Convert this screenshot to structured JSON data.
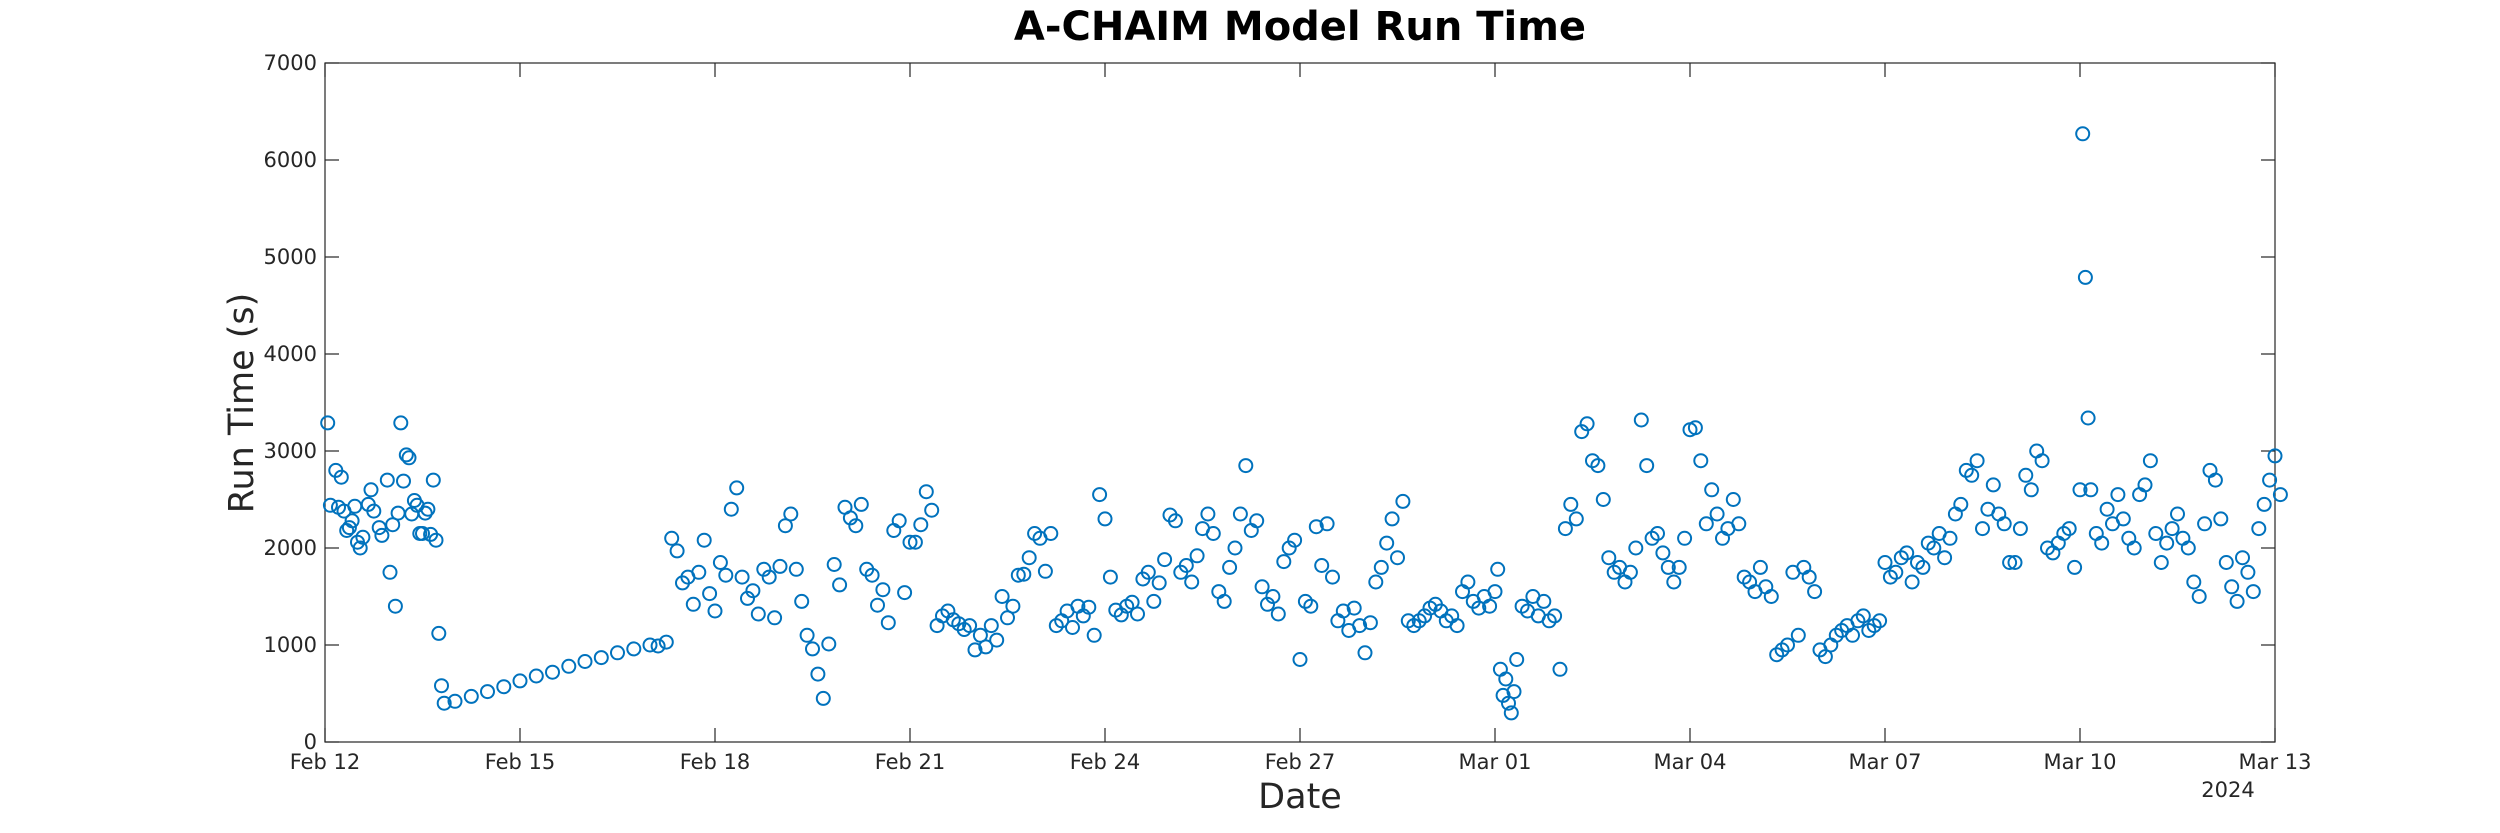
{
  "chart_data": {
    "type": "scatter",
    "title": "A-CHAIM Model Run Time",
    "xlabel": "Date",
    "ylabel": "Run Time (s)",
    "x_tick_labels": [
      "Feb 12",
      "Feb 15",
      "Feb 18",
      "Feb 21",
      "Feb 24",
      "Feb 27",
      "Mar 01",
      "Mar 04",
      "Mar 07",
      "Mar 10",
      "Mar 13"
    ],
    "x_secondary_label": "2024",
    "xlim": [
      "2024-02-12",
      "2024-03-13"
    ],
    "y_ticks": [
      0,
      1000,
      2000,
      3000,
      4000,
      5000,
      6000,
      7000
    ],
    "ylim": [
      0,
      7000
    ],
    "grid": false,
    "marker": "open-circle",
    "marker_color": "#0072BD",
    "series": [
      {
        "x": [
          "2024-02-12T01:00",
          "2024-02-12T02:00",
          "2024-02-12T04:00",
          "2024-02-12T05:00",
          "2024-02-12T06:00",
          "2024-02-12T07:00",
          "2024-02-12T08:00",
          "2024-02-12T09:00",
          "2024-02-12T10:00",
          "2024-02-12T11:00",
          "2024-02-12T12:00",
          "2024-02-12T13:00",
          "2024-02-12T14:00",
          "2024-02-12T16:00",
          "2024-02-12T17:00",
          "2024-02-12T18:00",
          "2024-02-12T20:00",
          "2024-02-12T21:00",
          "2024-02-12T23:00",
          "2024-02-13T00:00",
          "2024-02-13T01:00",
          "2024-02-13T02:00",
          "2024-02-13T03:00",
          "2024-02-13T04:00",
          "2024-02-13T05:00",
          "2024-02-13T06:00",
          "2024-02-13T07:00",
          "2024-02-13T08:00",
          "2024-02-13T09:00",
          "2024-02-13T10:00",
          "2024-02-13T11:00",
          "2024-02-13T12:00",
          "2024-02-13T13:00",
          "2024-02-13T14:00",
          "2024-02-13T15:00",
          "2024-02-13T16:00",
          "2024-02-13T17:00",
          "2024-02-13T18:00",
          "2024-02-13T19:00"
        ],
        "y": [
          3290,
          2440,
          2800,
          2420,
          2730,
          2380,
          2180,
          2210,
          2280,
          2430,
          2060,
          2000,
          2110,
          2450,
          2600,
          2380,
          2210,
          2130,
          2700,
          1750,
          2240,
          1400,
          2360,
          3290,
          2690,
          2960,
          2930,
          2350,
          2490,
          2440,
          2150,
          2150,
          2360,
          2400,
          2140,
          2700,
          2080,
          1120,
          580
        ]
      },
      {
        "x": [
          "2024-02-13T20:00",
          "2024-02-14T00:00",
          "2024-02-14T06:00",
          "2024-02-14T12:00",
          "2024-02-14T18:00",
          "2024-02-15T00:00",
          "2024-02-15T06:00",
          "2024-02-15T12:00",
          "2024-02-15T18:00",
          "2024-02-16T00:00",
          "2024-02-16T06:00",
          "2024-02-16T12:00",
          "2024-02-16T18:00",
          "2024-02-17T00:00",
          "2024-02-17T03:00",
          "2024-02-17T06:00"
        ],
        "y": [
          400,
          420,
          470,
          520,
          570,
          630,
          680,
          720,
          780,
          830,
          870,
          920,
          960,
          1000,
          990,
          1030
        ]
      },
      {
        "x": [
          "2024-02-17T08:00",
          "2024-02-17T10:00",
          "2024-02-17T12:00",
          "2024-02-17T14:00",
          "2024-02-17T16:00",
          "2024-02-17T18:00",
          "2024-02-17T20:00",
          "2024-02-17T22:00",
          "2024-02-18T00:00",
          "2024-02-18T02:00",
          "2024-02-18T04:00",
          "2024-02-18T06:00",
          "2024-02-18T08:00",
          "2024-02-18T10:00",
          "2024-02-18T12:00",
          "2024-02-18T14:00",
          "2024-02-18T16:00",
          "2024-02-18T18:00",
          "2024-02-18T20:00",
          "2024-02-18T22:00",
          "2024-02-19T00:00",
          "2024-02-19T02:00",
          "2024-02-19T04:00",
          "2024-02-19T06:00",
          "2024-02-19T08:00",
          "2024-02-19T10:00",
          "2024-02-19T12:00",
          "2024-02-19T14:00",
          "2024-02-19T16:00",
          "2024-02-19T18:00",
          "2024-02-19T20:00",
          "2024-02-19T22:00",
          "2024-02-20T00:00",
          "2024-02-20T02:00",
          "2024-02-20T04:00",
          "2024-02-20T06:00",
          "2024-02-20T08:00",
          "2024-02-20T10:00",
          "2024-02-20T12:00",
          "2024-02-20T14:00",
          "2024-02-20T16:00",
          "2024-02-20T18:00",
          "2024-02-20T20:00",
          "2024-02-20T22:00",
          "2024-02-21T00:00",
          "2024-02-21T02:00",
          "2024-02-21T04:00",
          "2024-02-21T06:00",
          "2024-02-21T08:00",
          "2024-02-21T10:00",
          "2024-02-21T12:00",
          "2024-02-21T14:00",
          "2024-02-21T16:00",
          "2024-02-21T18:00",
          "2024-02-21T20:00",
          "2024-02-21T22:00"
        ],
        "y": [
          2100,
          1970,
          1640,
          1700,
          1420,
          1750,
          2080,
          1530,
          1350,
          1850,
          1720,
          2400,
          2620,
          1700,
          1480,
          1560,
          1320,
          1780,
          1700,
          1280,
          1810,
          2230,
          2350,
          1780,
          1450,
          1100,
          960,
          700,
          450,
          1010,
          1830,
          1620,
          2420,
          2310,
          2230,
          2450,
          1780,
          1720,
          1410,
          1570,
          1230,
          2180,
          2280,
          1540,
          2060,
          2060,
          2240,
          2580,
          2390,
          1200,
          1300,
          1350,
          1260,
          1220,
          1160,
          1200
        ]
      },
      {
        "x": [
          "2024-02-22T00:00",
          "2024-02-22T02:00",
          "2024-02-22T04:00",
          "2024-02-22T06:00",
          "2024-02-22T08:00",
          "2024-02-22T10:00",
          "2024-02-22T12:00",
          "2024-02-22T14:00",
          "2024-02-22T16:00",
          "2024-02-22T18:00",
          "2024-02-22T20:00",
          "2024-02-22T22:00",
          "2024-02-23T00:00",
          "2024-02-23T02:00",
          "2024-02-23T04:00",
          "2024-02-23T06:00",
          "2024-02-23T08:00",
          "2024-02-23T10:00",
          "2024-02-23T12:00",
          "2024-02-23T14:00",
          "2024-02-23T16:00",
          "2024-02-23T18:00",
          "2024-02-23T20:00",
          "2024-02-23T22:00",
          "2024-02-24T00:00",
          "2024-02-24T02:00",
          "2024-02-24T04:00",
          "2024-02-24T06:00",
          "2024-02-24T08:00",
          "2024-02-24T10:00",
          "2024-02-24T12:00",
          "2024-02-24T14:00",
          "2024-02-24T16:00",
          "2024-02-24T18:00",
          "2024-02-24T20:00",
          "2024-02-24T22:00",
          "2024-02-25T00:00",
          "2024-02-25T02:00",
          "2024-02-25T04:00",
          "2024-02-25T06:00",
          "2024-02-25T08:00",
          "2024-02-25T10:00",
          "2024-02-25T12:00",
          "2024-02-25T14:00",
          "2024-02-25T16:00",
          "2024-02-25T18:00",
          "2024-02-25T20:00",
          "2024-02-25T22:00",
          "2024-02-26T00:00",
          "2024-02-26T02:00",
          "2024-02-26T04:00",
          "2024-02-26T06:00",
          "2024-02-26T08:00",
          "2024-02-26T10:00",
          "2024-02-26T12:00",
          "2024-02-26T14:00",
          "2024-02-26T16:00",
          "2024-02-26T18:00",
          "2024-02-26T20:00",
          "2024-02-26T22:00"
        ],
        "y": [
          950,
          1100,
          980,
          1200,
          1050,
          1500,
          1280,
          1400,
          1720,
          1730,
          1900,
          2150,
          2100,
          1760,
          2150,
          1200,
          1250,
          1350,
          1180,
          1400,
          1300,
          1390,
          1100,
          2550,
          2300,
          1700,
          1360,
          1310,
          1400,
          1440,
          1320,
          1680,
          1750,
          1450,
          1640,
          1880,
          2340,
          2280,
          1750,
          1820,
          1650,
          1920,
          2200,
          2350,
          2150,
          1550,
          1450,
          1800,
          2000,
          2350,
          2850,
          2180,
          2280,
          1600,
          1420,
          1500,
          1320,
          1860,
          2000,
          2080
        ]
      },
      {
        "x": [
          "2024-02-27T00:00",
          "2024-02-27T02:00",
          "2024-02-27T04:00",
          "2024-02-27T06:00",
          "2024-02-27T08:00",
          "2024-02-27T10:00",
          "2024-02-27T12:00",
          "2024-02-27T14:00",
          "2024-02-27T16:00",
          "2024-02-27T18:00",
          "2024-02-27T20:00",
          "2024-02-27T22:00",
          "2024-02-28T00:00",
          "2024-02-28T02:00",
          "2024-02-28T04:00",
          "2024-02-28T06:00",
          "2024-02-28T08:00",
          "2024-02-28T10:00",
          "2024-02-28T12:00",
          "2024-02-28T14:00",
          "2024-02-28T16:00",
          "2024-02-28T18:00",
          "2024-02-28T20:00",
          "2024-02-28T22:00",
          "2024-02-29T00:00",
          "2024-02-29T02:00",
          "2024-02-29T04:00",
          "2024-02-29T06:00",
          "2024-02-29T08:00",
          "2024-02-29T10:00",
          "2024-02-29T12:00",
          "2024-02-29T14:00",
          "2024-02-29T16:00",
          "2024-02-29T18:00",
          "2024-02-29T20:00",
          "2024-02-29T22:00"
        ],
        "y": [
          850,
          1450,
          1400,
          2220,
          1820,
          2250,
          1700,
          1250,
          1350,
          1150,
          1380,
          1200,
          920,
          1230,
          1650,
          1800,
          2050,
          2300,
          1900,
          2480,
          1250,
          1200,
          1250,
          1300,
          1380,
          1420,
          1350,
          1250,
          1300,
          1200,
          1550,
          1650,
          1450,
          1380,
          1500,
          1400
        ]
      },
      {
        "x": [
          "2024-03-01T00:00",
          "2024-03-01T01:00",
          "2024-03-01T02:00",
          "2024-03-01T03:00",
          "2024-03-01T04:00",
          "2024-03-01T05:00",
          "2024-03-01T06:00",
          "2024-03-01T07:00",
          "2024-03-01T08:00",
          "2024-03-01T10:00",
          "2024-03-01T12:00",
          "2024-03-01T14:00",
          "2024-03-01T16:00",
          "2024-03-01T18:00",
          "2024-03-01T20:00",
          "2024-03-01T22:00",
          "2024-03-02T00:00",
          "2024-03-02T02:00",
          "2024-03-02T04:00",
          "2024-03-02T06:00",
          "2024-03-02T08:00",
          "2024-03-02T10:00",
          "2024-03-02T12:00",
          "2024-03-02T14:00",
          "2024-03-02T16:00",
          "2024-03-02T18:00",
          "2024-03-02T20:00",
          "2024-03-02T22:00",
          "2024-03-03T00:00",
          "2024-03-03T02:00",
          "2024-03-03T04:00",
          "2024-03-03T06:00",
          "2024-03-03T08:00",
          "2024-03-03T10:00",
          "2024-03-03T12:00",
          "2024-03-03T14:00",
          "2024-03-03T16:00",
          "2024-03-03T18:00",
          "2024-03-03T20:00",
          "2024-03-03T22:00"
        ],
        "y": [
          1550,
          1780,
          750,
          480,
          650,
          400,
          300,
          520,
          850,
          1400,
          1350,
          1500,
          1300,
          1450,
          1250,
          1300,
          750,
          2200,
          2450,
          2300,
          3200,
          3280,
          2900,
          2850,
          2500,
          1900,
          1750,
          1800,
          1650,
          1750,
          2000,
          3320,
          2850,
          2100,
          2150,
          1950,
          1800,
          1650,
          1800,
          2100
        ]
      },
      {
        "x": [
          "2024-03-04T00:00",
          "2024-03-04T02:00",
          "2024-03-04T04:00",
          "2024-03-04T06:00",
          "2024-03-04T08:00",
          "2024-03-04T10:00",
          "2024-03-04T12:00",
          "2024-03-04T14:00",
          "2024-03-04T16:00",
          "2024-03-04T18:00",
          "2024-03-04T20:00",
          "2024-03-04T22:00",
          "2024-03-05T00:00",
          "2024-03-05T02:00",
          "2024-03-05T04:00",
          "2024-03-05T06:00",
          "2024-03-05T08:00",
          "2024-03-05T10:00",
          "2024-03-05T12:00",
          "2024-03-05T14:00",
          "2024-03-05T16:00",
          "2024-03-05T18:00",
          "2024-03-05T20:00",
          "2024-03-05T22:00",
          "2024-03-06T00:00",
          "2024-03-06T02:00",
          "2024-03-06T04:00",
          "2024-03-06T06:00",
          "2024-03-06T08:00",
          "2024-03-06T10:00",
          "2024-03-06T12:00",
          "2024-03-06T14:00",
          "2024-03-06T16:00",
          "2024-03-06T18:00",
          "2024-03-06T20:00",
          "2024-03-06T22:00"
        ],
        "y": [
          3220,
          3240,
          2900,
          2250,
          2600,
          2350,
          2100,
          2200,
          2500,
          2250,
          1700,
          1650,
          1550,
          1800,
          1600,
          1500,
          900,
          950,
          1000,
          1750,
          1100,
          1800,
          1700,
          1550,
          950,
          880,
          1000,
          1100,
          1150,
          1200,
          1100,
          1250,
          1300,
          1150,
          1200,
          1250
        ]
      },
      {
        "x": [
          "2024-03-07T00:00",
          "2024-03-07T02:00",
          "2024-03-07T04:00",
          "2024-03-07T06:00",
          "2024-03-07T08:00",
          "2024-03-07T10:00",
          "2024-03-07T12:00",
          "2024-03-07T14:00",
          "2024-03-07T16:00",
          "2024-03-07T18:00",
          "2024-03-07T20:00",
          "2024-03-07T22:00",
          "2024-03-08T00:00",
          "2024-03-08T02:00",
          "2024-03-08T04:00",
          "2024-03-08T06:00",
          "2024-03-08T08:00",
          "2024-03-08T10:00",
          "2024-03-08T12:00",
          "2024-03-08T14:00",
          "2024-03-08T16:00",
          "2024-03-08T18:00",
          "2024-03-08T20:00",
          "2024-03-08T22:00",
          "2024-03-09T00:00",
          "2024-03-09T02:00",
          "2024-03-09T04:00",
          "2024-03-09T06:00",
          "2024-03-09T08:00",
          "2024-03-09T10:00",
          "2024-03-09T12:00",
          "2024-03-09T14:00",
          "2024-03-09T16:00",
          "2024-03-09T18:00",
          "2024-03-09T20:00",
          "2024-03-09T22:00"
        ],
        "y": [
          1850,
          1700,
          1750,
          1900,
          1950,
          1650,
          1850,
          1800,
          2050,
          2000,
          2150,
          1900,
          2100,
          2350,
          2450,
          2800,
          2750,
          2900,
          2200,
          2400,
          2650,
          2350,
          2250,
          1850,
          1850,
          2200,
          2750,
          2600,
          3000,
          2900,
          2000,
          1950,
          2050,
          2150,
          2200,
          1800
        ]
      },
      {
        "x": [
          "2024-03-10T00:00",
          "2024-03-10T01:00",
          "2024-03-10T02:00",
          "2024-03-10T03:00",
          "2024-03-10T04:00",
          "2024-03-10T06:00",
          "2024-03-10T08:00",
          "2024-03-10T10:00",
          "2024-03-10T12:00",
          "2024-03-10T14:00",
          "2024-03-10T16:00",
          "2024-03-10T18:00",
          "2024-03-10T20:00",
          "2024-03-10T22:00",
          "2024-03-11T00:00",
          "2024-03-11T02:00",
          "2024-03-11T04:00",
          "2024-03-11T06:00",
          "2024-03-11T08:00",
          "2024-03-11T10:00",
          "2024-03-11T12:00",
          "2024-03-11T14:00",
          "2024-03-11T16:00",
          "2024-03-11T18:00",
          "2024-03-11T20:00",
          "2024-03-11T22:00",
          "2024-03-12T00:00",
          "2024-03-12T02:00",
          "2024-03-12T04:00",
          "2024-03-12T06:00",
          "2024-03-12T08:00",
          "2024-03-12T10:00",
          "2024-03-12T12:00",
          "2024-03-12T14:00",
          "2024-03-12T16:00",
          "2024-03-12T18:00",
          "2024-03-12T20:00",
          "2024-03-12T22:00",
          "2024-03-13T00:00",
          "2024-03-13T02:00"
        ],
        "y": [
          2600,
          6270,
          4790,
          3340,
          2600,
          2150,
          2050,
          2400,
          2250,
          2550,
          2300,
          2100,
          2000,
          2550,
          2650,
          2900,
          2150,
          1850,
          2050,
          2200,
          2350,
          2100,
          2000,
          1650,
          1500,
          2250,
          2800,
          2700,
          2300,
          1850,
          1600,
          1450,
          1900,
          1750,
          1550,
          2200,
          2450,
          2700,
          2950,
          2550
        ]
      }
    ]
  }
}
